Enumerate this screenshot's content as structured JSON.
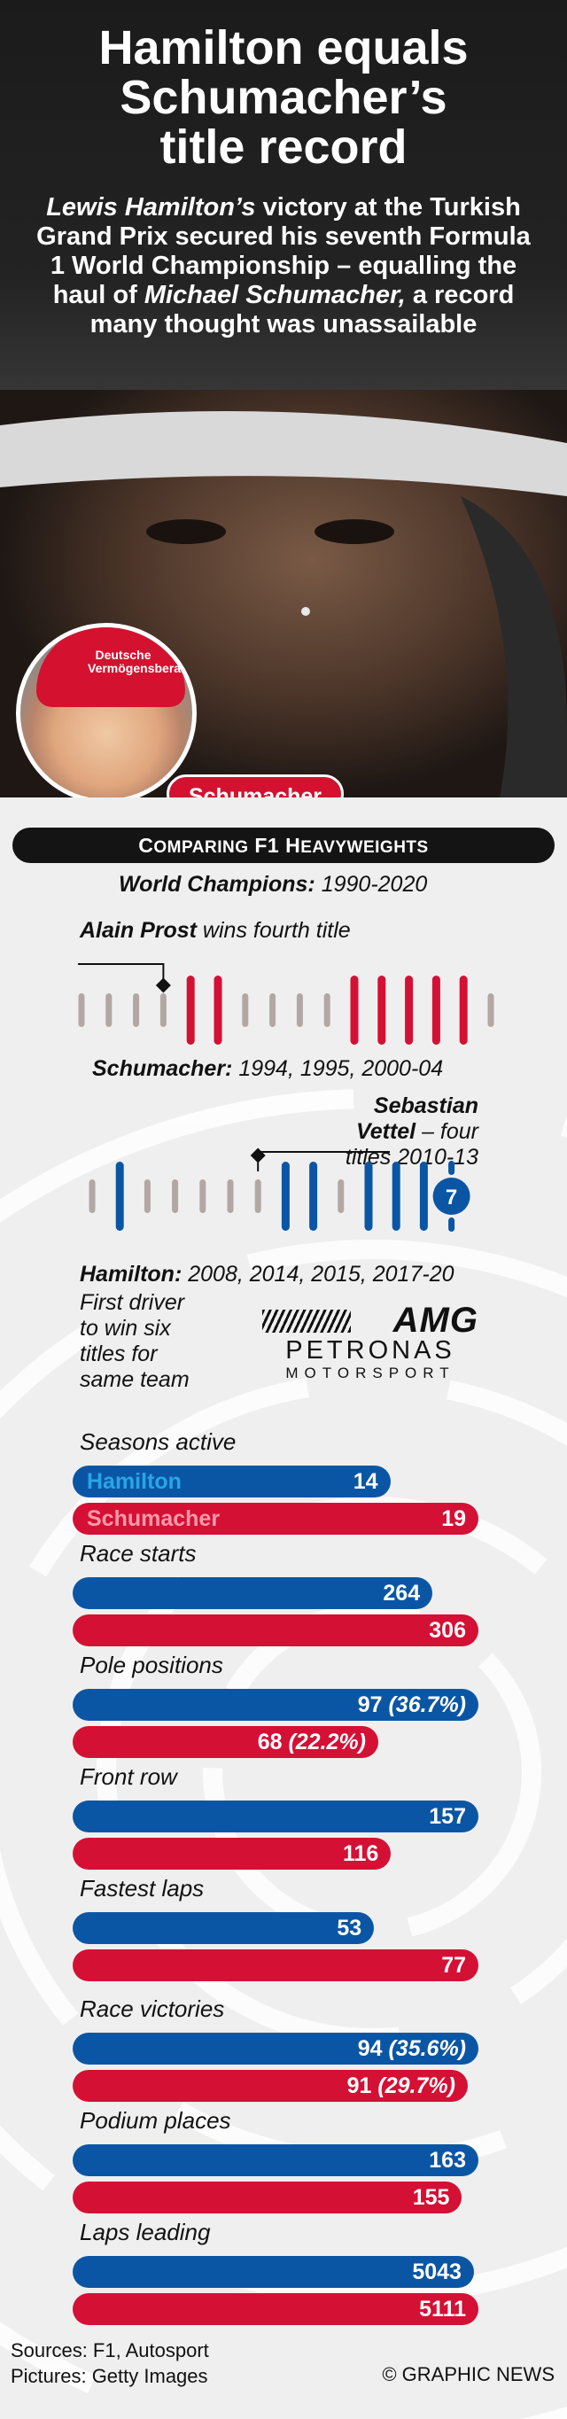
{
  "header": {
    "title_lines": [
      "Hamilton equals",
      "Schumacher’s",
      "title record"
    ],
    "standfirst": {
      "name1": "Lewis Hamilton’s",
      "text1": " victory at the Turkish Grand Prix secured his seventh Formula 1 World Championship – equalling the haul of ",
      "name2": "Michael Schumacher,",
      "text2": " a record many thought was unassailable"
    },
    "cap_text": "Deutsche Vermögensberatung",
    "schumacher_label": "Schumacher"
  },
  "section": {
    "banner_cap1": "C",
    "banner_small1": "OMPARING",
    "banner_mid": " F1 H",
    "banner_small2": "EAVYWEIGHTS",
    "world_champions_label": "World Champions:",
    "world_champions_range": " 1990-2020"
  },
  "chart_data": [
    {
      "type": "timeline",
      "title": "Schumacher",
      "seasons": [
        1990,
        1991,
        1992,
        1993,
        1994,
        1995,
        1996,
        1997,
        1998,
        1999,
        2000,
        2001,
        2002,
        2003,
        2004,
        2005
      ],
      "titles": [
        1994,
        1995,
        2000,
        2001,
        2002,
        2003,
        2004
      ],
      "count_badge": "7",
      "caption_name": "Schumacher:",
      "caption_years": " 1994, 1995, 2000-04",
      "annotation": {
        "name": "Alain Prost",
        "text": " wins fourth title",
        "year": 1993
      }
    },
    {
      "type": "timeline",
      "title": "Hamilton",
      "seasons": [
        2007,
        2008,
        2009,
        2010,
        2011,
        2012,
        2013,
        2014,
        2015,
        2016,
        2017,
        2018,
        2019,
        2020
      ],
      "titles": [
        2008,
        2014,
        2015,
        2017,
        2018,
        2019,
        2020
      ],
      "count_badge": "7",
      "caption_name": "Hamilton:",
      "caption_years": " 2008, 2014, 2015, 2017-20",
      "annotation": {
        "name_line1": "Sebastian",
        "name_line2": "Vettel",
        "text_line1": " – four",
        "text_line2": "titles 2010-13",
        "year": 2013
      },
      "note_lines": [
        "First driver",
        "to win six",
        "titles for",
        "same team"
      ]
    },
    {
      "type": "bar",
      "series": [
        {
          "name": "Hamilton"
        },
        {
          "name": "Schumacher"
        }
      ],
      "stats": [
        {
          "label": "Seasons active",
          "hamilton": 14,
          "schumacher": 19,
          "ham_text": "14",
          "sch_text": "19"
        },
        {
          "label": "Race starts",
          "hamilton": 264,
          "schumacher": 306,
          "ham_text": "264",
          "sch_text": "306"
        },
        {
          "label": "Pole positions",
          "hamilton": 97,
          "schumacher": 68,
          "ham_text": "97",
          "ham_pct": "(36.7%)",
          "sch_text": "68",
          "sch_pct": "(22.2%)"
        },
        {
          "label": "Front row",
          "hamilton": 157,
          "schumacher": 116,
          "ham_text": "157",
          "sch_text": "116"
        },
        {
          "label": "Fastest laps",
          "hamilton": 53,
          "schumacher": 77,
          "ham_text": "53",
          "sch_text": "77"
        },
        {
          "label": "Race victories",
          "hamilton": 94,
          "schumacher": 91,
          "ham_text": "94",
          "ham_pct": "(35.6%)",
          "sch_text": "91",
          "sch_pct": "(29.7%)"
        },
        {
          "label": "Podium places",
          "hamilton": 163,
          "schumacher": 155,
          "ham_text": "163",
          "sch_text": "155"
        },
        {
          "label": "Laps leading",
          "hamilton": 5043,
          "schumacher": 5111,
          "ham_text": "5043",
          "sch_text": "5111"
        }
      ]
    }
  ],
  "logo": {
    "amg": "AMG",
    "petronas": "PETRONAS",
    "motorsport": "MOTORSPORT"
  },
  "footer": {
    "sources": "Sources: F1, Autosport",
    "pictures": "Pictures: Getty Images",
    "credit": "© GRAPHIC NEWS"
  },
  "colors": {
    "hamilton": "#0b56a4",
    "schumacher": "#d41035",
    "neutral": "#b3a7a4",
    "banner": "#141414"
  }
}
